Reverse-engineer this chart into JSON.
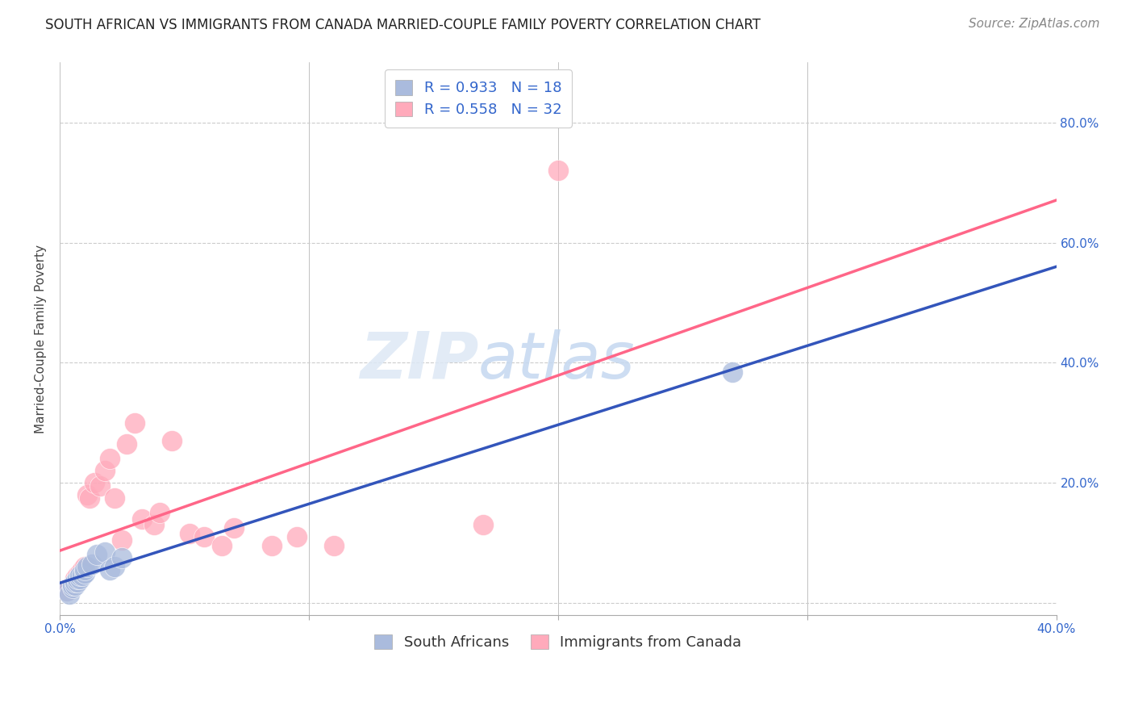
{
  "title": "SOUTH AFRICAN VS IMMIGRANTS FROM CANADA MARRIED-COUPLE FAMILY POVERTY CORRELATION CHART",
  "source": "Source: ZipAtlas.com",
  "ylabel_label": "Married-Couple Family Poverty",
  "xlim": [
    0.0,
    0.4
  ],
  "ylim": [
    -0.02,
    0.9
  ],
  "xticks": [
    0.0,
    0.1,
    0.2,
    0.3,
    0.4
  ],
  "xtick_labels": [
    "0.0%",
    "",
    "",
    "",
    "40.0%"
  ],
  "yticks": [
    0.0,
    0.2,
    0.4,
    0.6,
    0.8
  ],
  "ytick_labels_left": [
    "",
    "",
    "",
    "",
    ""
  ],
  "ytick_labels_right": [
    "",
    "20.0%",
    "40.0%",
    "60.0%",
    "80.0%"
  ],
  "background_color": "#ffffff",
  "grid_color": "#cccccc",
  "watermark_zip": "ZIP",
  "watermark_atlas": "atlas",
  "blue_color": "#aabbdd",
  "pink_color": "#ffaabb",
  "blue_line_color": "#3355bb",
  "pink_line_color": "#ff6688",
  "south_africans_label": "South Africans",
  "immigrants_label": "Immigrants from Canada",
  "south_africans_x": [
    0.003,
    0.004,
    0.005,
    0.005,
    0.006,
    0.006,
    0.007,
    0.007,
    0.008,
    0.008,
    0.009,
    0.01,
    0.01,
    0.011,
    0.013,
    0.015,
    0.018,
    0.02,
    0.022,
    0.025,
    0.27
  ],
  "south_africans_y": [
    0.02,
    0.015,
    0.025,
    0.03,
    0.03,
    0.035,
    0.035,
    0.04,
    0.04,
    0.045,
    0.045,
    0.05,
    0.055,
    0.06,
    0.065,
    0.08,
    0.085,
    0.055,
    0.06,
    0.075,
    0.385
  ],
  "immigrants_x": [
    0.003,
    0.004,
    0.005,
    0.006,
    0.006,
    0.007,
    0.008,
    0.009,
    0.01,
    0.011,
    0.012,
    0.014,
    0.016,
    0.018,
    0.02,
    0.022,
    0.025,
    0.027,
    0.03,
    0.033,
    0.038,
    0.04,
    0.045,
    0.052,
    0.058,
    0.065,
    0.07,
    0.085,
    0.095,
    0.11,
    0.17,
    0.2
  ],
  "immigrants_y": [
    0.02,
    0.025,
    0.03,
    0.035,
    0.04,
    0.045,
    0.05,
    0.055,
    0.06,
    0.18,
    0.175,
    0.2,
    0.195,
    0.22,
    0.24,
    0.175,
    0.105,
    0.265,
    0.3,
    0.14,
    0.13,
    0.15,
    0.27,
    0.115,
    0.11,
    0.095,
    0.125,
    0.095,
    0.11,
    0.095,
    0.13,
    0.72
  ],
  "title_fontsize": 12,
  "axis_label_fontsize": 11,
  "tick_fontsize": 11,
  "legend_fontsize": 13,
  "source_fontsize": 11
}
